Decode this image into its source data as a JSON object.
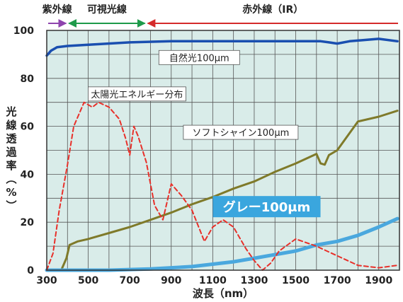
{
  "chart_data": {
    "type": "line",
    "xlabel": "波長（nm）",
    "ylabel": "光線透過率（%）",
    "xlim": [
      300,
      2000
    ],
    "ylim": [
      0,
      100
    ],
    "x_ticks": [
      300,
      500,
      700,
      900,
      1100,
      1300,
      1500,
      1700,
      1900
    ],
    "y_ticks": [
      0,
      20,
      40,
      60,
      80,
      100
    ],
    "grid": true,
    "bands": [
      {
        "label": "紫外線",
        "from": 300,
        "to": 400,
        "color": "#8e44ad"
      },
      {
        "label": "可視光線",
        "from": 400,
        "to": 780,
        "color": "#1e9a4a"
      },
      {
        "label": "赤外線（IR）",
        "from": 780,
        "to": 2000,
        "color": "#d42a2a"
      }
    ],
    "series": [
      {
        "name": "自然光100μm",
        "color": "#1a4fb0",
        "style": "solid",
        "x": [
          300,
          320,
          350,
          400,
          500,
          700,
          900,
          1100,
          1300,
          1500,
          1620,
          1660,
          1700,
          1760,
          1900,
          1990
        ],
        "y": [
          89.5,
          91.5,
          93,
          93.5,
          94,
          95,
          95.5,
          95.5,
          95.5,
          95.5,
          95.5,
          95,
          94.5,
          95.5,
          96.5,
          95.5
        ]
      },
      {
        "name": "太陽光エネルギー分布",
        "color": "#e8302a",
        "style": "dashed",
        "x": [
          300,
          330,
          360,
          400,
          430,
          480,
          520,
          550,
          600,
          650,
          680,
          700,
          720,
          740,
          780,
          820,
          860,
          900,
          950,
          1000,
          1060,
          1100,
          1150,
          1200,
          1260,
          1300,
          1340,
          1380,
          1420,
          1500,
          1600,
          1700,
          1800,
          1900,
          1990
        ],
        "y": [
          0,
          7,
          25,
          44,
          60,
          70,
          68,
          70,
          68,
          63,
          55,
          48,
          60,
          56,
          45,
          27,
          21,
          36,
          31,
          25,
          12,
          18,
          21,
          18,
          9,
          4,
          0,
          3,
          8,
          13,
          10,
          6,
          2,
          1,
          2
        ]
      },
      {
        "name": "ソフトシャイン100μm",
        "color": "#7f7a2a",
        "style": "solid",
        "x": [
          300,
          370,
          395,
          410,
          450,
          500,
          600,
          700,
          800,
          900,
          1000,
          1100,
          1200,
          1300,
          1400,
          1500,
          1600,
          1620,
          1640,
          1660,
          1700,
          1800,
          1900,
          1990
        ],
        "y": [
          0,
          0,
          5,
          10.5,
          12,
          13,
          15.5,
          18,
          21,
          24,
          27.5,
          30.5,
          34,
          37,
          41,
          44.5,
          48.5,
          44.5,
          44,
          48,
          50,
          62,
          64,
          66.5
        ]
      },
      {
        "name": "グレー100μm",
        "color": "#4aa8de",
        "style": "solid",
        "x": [
          300,
          400,
          600,
          800,
          1000,
          1100,
          1200,
          1300,
          1400,
          1500,
          1600,
          1700,
          1800,
          1900,
          1990
        ],
        "y": [
          0,
          0,
          0,
          0.5,
          1.5,
          2.5,
          3.5,
          5,
          6.5,
          8,
          10.5,
          12,
          14.5,
          18,
          21.5
        ]
      }
    ],
    "annotations": [
      {
        "text": "自然光100μm",
        "x": 1035,
        "y": 88.7
      },
      {
        "text": "太陽光エネルギー分布",
        "x": 735,
        "y": 73.5
      },
      {
        "text": "ソフトシャイン100μm",
        "x": 1235,
        "y": 57.5
      },
      {
        "text": "グレー100μm",
        "x": 1360,
        "y": 26.5
      }
    ]
  }
}
